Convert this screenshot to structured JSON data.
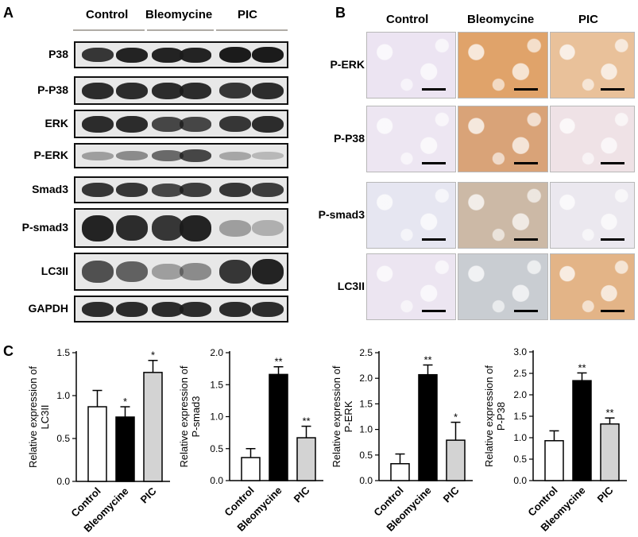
{
  "panels": {
    "a": "A",
    "b": "B",
    "c": "C"
  },
  "blot": {
    "groups": [
      "Control",
      "Bleomycine",
      "PIC"
    ],
    "rows": [
      {
        "label": "P38",
        "intensity": [
          0.85,
          0.95,
          0.95,
          0.95,
          1.0,
          1.0
        ]
      },
      {
        "label": "P-P38",
        "intensity": [
          0.9,
          0.9,
          0.9,
          0.9,
          0.85,
          0.9
        ]
      },
      {
        "label": "ERK",
        "intensity": [
          0.9,
          0.9,
          0.75,
          0.75,
          0.85,
          0.9
        ]
      },
      {
        "label": "P-ERK",
        "intensity": [
          0.25,
          0.35,
          0.55,
          0.75,
          0.2,
          0.1
        ]
      },
      {
        "label": "Smad3",
        "intensity": [
          0.85,
          0.85,
          0.75,
          0.8,
          0.85,
          0.8
        ]
      },
      {
        "label": "P-smad3",
        "intensity": [
          0.95,
          0.9,
          0.85,
          0.95,
          0.25,
          0.15
        ]
      },
      {
        "label": "LC3II",
        "intensity": [
          0.7,
          0.6,
          0.25,
          0.35,
          0.85,
          0.95
        ]
      },
      {
        "label": "GAPDH",
        "intensity": [
          0.9,
          0.9,
          0.9,
          0.9,
          0.9,
          0.9
        ]
      }
    ]
  },
  "ihc": {
    "columns": [
      "Control",
      "Bleomycine",
      "PIC"
    ],
    "rows": [
      "P-ERK",
      "P-P38",
      "P-smad3",
      "LC3II"
    ],
    "tint": [
      [
        "#ece4f2",
        "#e0a36a",
        "#e9c19a"
      ],
      [
        "#ede6f2",
        "#d9a378",
        "#efe2e6"
      ],
      [
        "#e6e6f1",
        "#ccb9a6",
        "#ebe8ef"
      ],
      [
        "#ece5f1",
        "#c9cdd2",
        "#e3b487"
      ]
    ]
  },
  "chart_data": [
    {
      "type": "bar",
      "categories": [
        "Control",
        "Bleomycine",
        "PIC"
      ],
      "values": [
        0.87,
        0.75,
        1.27
      ],
      "errors": [
        0.19,
        0.12,
        0.14
      ],
      "significance": [
        "",
        "*",
        "*"
      ],
      "ylabel": "Relative expression of LC3II",
      "ylim": [
        0,
        1.5
      ],
      "yticks": [
        "0.0",
        "0.5",
        "1.0",
        "1.5"
      ],
      "colors": [
        "#ffffff",
        "#000000",
        "#d3d3d3"
      ]
    },
    {
      "type": "bar",
      "categories": [
        "Control",
        "Bleomycine",
        "PIC"
      ],
      "values": [
        0.36,
        1.66,
        0.67
      ],
      "errors": [
        0.14,
        0.12,
        0.18
      ],
      "significance": [
        "",
        "**",
        "**"
      ],
      "ylabel": "Relative expression of P-smad3",
      "ylim": [
        0,
        2.0
      ],
      "yticks": [
        "0.0",
        "0.5",
        "1.0",
        "1.5",
        "2.0"
      ],
      "colors": [
        "#ffffff",
        "#000000",
        "#d3d3d3"
      ]
    },
    {
      "type": "bar",
      "categories": [
        "Control",
        "Bleomycine",
        "PIC"
      ],
      "values": [
        0.33,
        2.07,
        0.79
      ],
      "errors": [
        0.19,
        0.19,
        0.35
      ],
      "significance": [
        "",
        "**",
        "*"
      ],
      "ylabel": "Relative expression of P-ERK",
      "ylim": [
        0,
        2.5
      ],
      "yticks": [
        "0.0",
        "0.5",
        "1.0",
        "1.5",
        "2.0",
        "2.5"
      ],
      "colors": [
        "#ffffff",
        "#000000",
        "#d3d3d3"
      ]
    },
    {
      "type": "bar",
      "categories": [
        "Control",
        "Bleomycine",
        "PIC"
      ],
      "values": [
        0.93,
        2.33,
        1.32
      ],
      "errors": [
        0.23,
        0.18,
        0.14
      ],
      "significance": [
        "",
        "**",
        "**"
      ],
      "ylabel": "Relative expression of P-P38",
      "ylim": [
        0,
        3.0
      ],
      "yticks": [
        "0.0",
        "0.5",
        "1.0",
        "1.5",
        "2.0",
        "2.5",
        "3.0"
      ],
      "colors": [
        "#ffffff",
        "#000000",
        "#d3d3d3"
      ]
    }
  ]
}
